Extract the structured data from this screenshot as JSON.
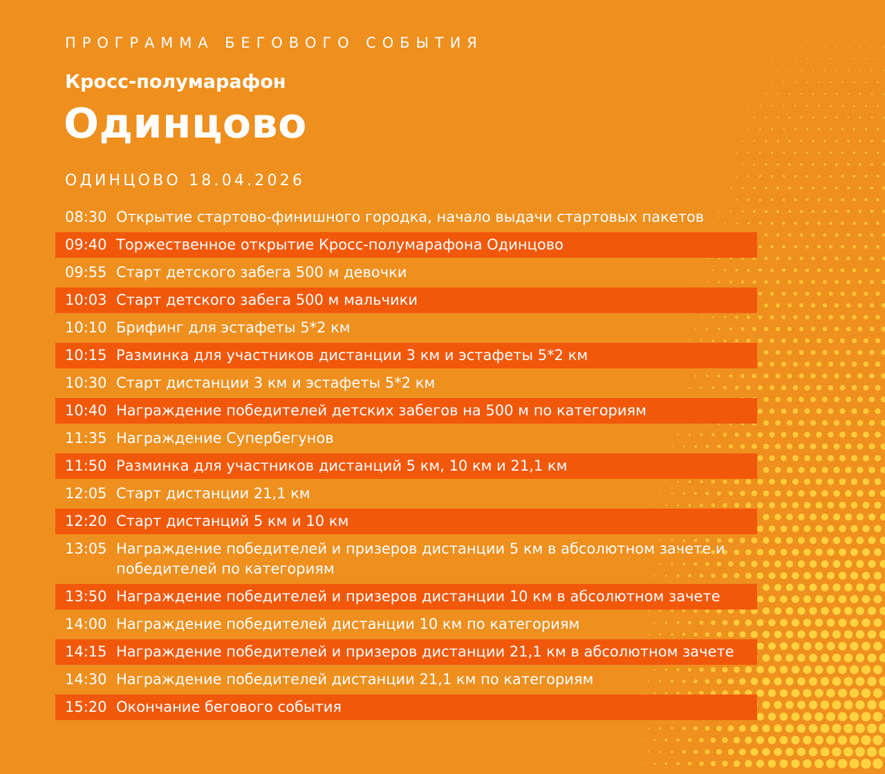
{
  "header": {
    "eyebrow": "ПРОГРАММА БЕГОВОГО СОБЫТИЯ",
    "subtitle": "Кросс-полумарафон",
    "title": "Одинцово",
    "dateline": "ОДИНЦОВО 18.04.2026"
  },
  "colors": {
    "background": "#ee8f1e",
    "highlight_row": "#f2580a",
    "halftone_dots": "#ffd23f",
    "text": "#ffffff"
  },
  "schedule": [
    {
      "time": "08:30",
      "text": "Открытие стартово-финишного городка, начало выдачи стартовых пакетов",
      "highlight": false
    },
    {
      "time": "09:40",
      "text": "Торжественное открытие Кросс-полумарафона Одинцово",
      "highlight": true
    },
    {
      "time": "09:55",
      "text": "Старт детского забега 500 м девочки",
      "highlight": false
    },
    {
      "time": "10:03",
      "text": "Старт детского забега 500 м мальчики",
      "highlight": true
    },
    {
      "time": "10:10",
      "text": "Брифинг для эстафеты 5*2 км",
      "highlight": false
    },
    {
      "time": "10:15",
      "text": "Разминка для участников дистанции 3 км и эстафеты 5*2 км",
      "highlight": true
    },
    {
      "time": "10:30",
      "text": "Старт дистанции 3 км и эстафеты 5*2 км",
      "highlight": false
    },
    {
      "time": "10:40",
      "text": "Награждение победителей детских забегов на 500 м по категориям",
      "highlight": true
    },
    {
      "time": "11:35",
      "text": "Награждение Супербегунов",
      "highlight": false
    },
    {
      "time": "11:50",
      "text": "Разминка для участников дистанций 5 км, 10 км и 21,1 км",
      "highlight": true
    },
    {
      "time": "12:05",
      "text": "Старт дистанции 21,1 км",
      "highlight": false
    },
    {
      "time": "12:20",
      "text": "Старт дистанций 5 км и 10 км",
      "highlight": true
    },
    {
      "time": "13:05",
      "text": "Награждение победителей и призеров дистанции 5 км в абсолютном зачете и победителей по категориям",
      "highlight": false
    },
    {
      "time": "13:50",
      "text": "Награждение победителей и призеров дистанции 10 км в абсолютном зачете",
      "highlight": true
    },
    {
      "time": "14:00",
      "text": "Награждение победителей дистанции 10 км по категориям",
      "highlight": false
    },
    {
      "time": "14:15",
      "text": "Награждение победителей и призеров дистанции 21,1 км в абсолютном зачете",
      "highlight": true
    },
    {
      "time": "14:30",
      "text": "Награждение победителей дистанции 21,1 км по категориям",
      "highlight": false
    },
    {
      "time": "15:20",
      "text": "Окончание бегового события",
      "highlight": true
    }
  ]
}
